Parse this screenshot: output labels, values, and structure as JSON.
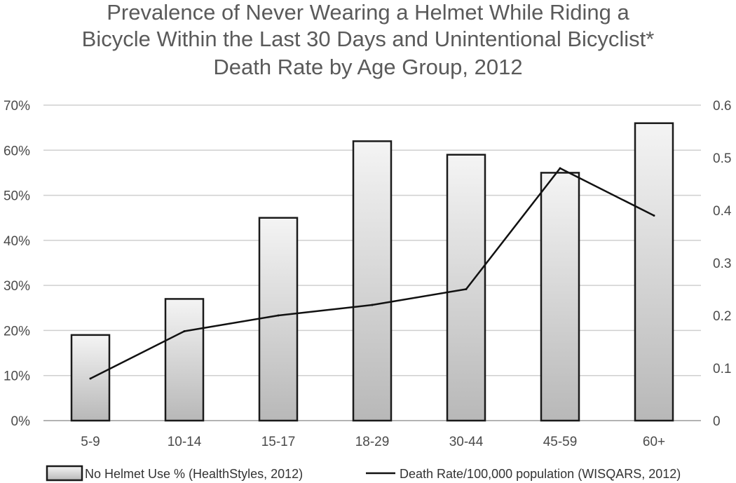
{
  "title_lines": [
    "Prevalence of Never Wearing a Helmet While Riding a",
    "Bicycle Within the Last 30 Days and Unintentional Bicyclist*",
    "Death Rate by Age Group, 2012"
  ],
  "chart_data": {
    "type": "bar",
    "title": "Prevalence of Never Wearing a Helmet While Riding a Bicycle Within the Last 30 Days and Unintentional Bicyclist* Death Rate by Age Group, 2012",
    "categories": [
      "5-9",
      "10-14",
      "15-17",
      "18-29",
      "30-44",
      "45-59",
      "60+"
    ],
    "series": [
      {
        "name": "No Helmet Use % (HealthStyles, 2012)",
        "type": "bar",
        "axis": "left",
        "values": [
          19,
          27,
          45,
          62,
          59,
          55,
          66
        ]
      },
      {
        "name": "Death Rate/100,000 population (WISQARS, 2012)",
        "type": "line",
        "axis": "right",
        "values": [
          0.08,
          0.17,
          0.2,
          0.22,
          0.25,
          0.48,
          0.39
        ]
      }
    ],
    "y_left": {
      "ylim": [
        0,
        70
      ],
      "ticks": [
        "0%",
        "10%",
        "20%",
        "30%",
        "40%",
        "50%",
        "60%",
        "70%"
      ]
    },
    "y_right": {
      "ylim": [
        0,
        0.6
      ],
      "ticks": [
        "0",
        "0.1",
        "0.2",
        "0.3",
        "0.4",
        "0.5",
        "0.6"
      ]
    },
    "grid": true,
    "legend": "bottom",
    "colors": {
      "bar_fill_top": "#f4f4f4",
      "bar_fill_bottom": "#b8b8b8",
      "bar_stroke": "#1a1a1a",
      "line": "#111111",
      "grid": "#cfcfcf"
    }
  }
}
